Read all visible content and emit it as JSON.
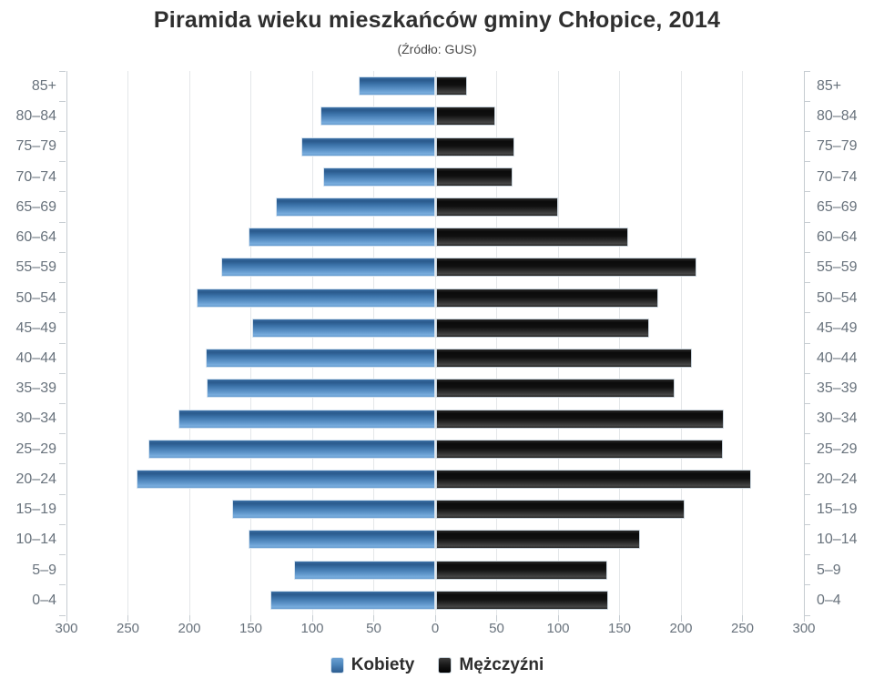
{
  "title": "Piramida wieku mieszkańców gminy Chłopice, 2014",
  "subtitle": "(Źródło: GUS)",
  "legend": {
    "position": "bottom",
    "items": [
      {
        "label": "Kobiety",
        "color": "#4b86bc"
      },
      {
        "label": "Mężczyźni",
        "color": "#161616"
      }
    ]
  },
  "chart_data": {
    "type": "bar",
    "variant": "population-pyramid",
    "title": "Piramida wieku mieszkańców gminy Chłopice, 2014",
    "subtitle": "(Źródło: GUS)",
    "categories": [
      "85+",
      "80–84",
      "75–79",
      "70–74",
      "65–69",
      "60–64",
      "55–59",
      "50–54",
      "45–49",
      "40–44",
      "35–39",
      "30–34",
      "25–29",
      "20–24",
      "15–19",
      "10–14",
      "5–9",
      "0–4"
    ],
    "series": [
      {
        "name": "Kobiety",
        "side": "left",
        "color": "#4b86bc",
        "values": [
          62,
          93,
          109,
          91,
          130,
          152,
          174,
          194,
          149,
          187,
          186,
          209,
          233,
          243,
          165,
          152,
          115,
          134
        ]
      },
      {
        "name": "Mężczyźni",
        "side": "right",
        "color": "#161616",
        "values": [
          25,
          48,
          64,
          62,
          99,
          156,
          212,
          181,
          173,
          208,
          194,
          234,
          233,
          256,
          202,
          166,
          139,
          140
        ]
      }
    ],
    "x_axis": {
      "max_each_side": 300,
      "tick_interval": 50,
      "tick_labels": [
        "300",
        "250",
        "200",
        "150",
        "100",
        "50",
        "0",
        "50",
        "100",
        "150",
        "200",
        "250",
        "300"
      ]
    },
    "grid": true,
    "legend_position": "bottom"
  }
}
